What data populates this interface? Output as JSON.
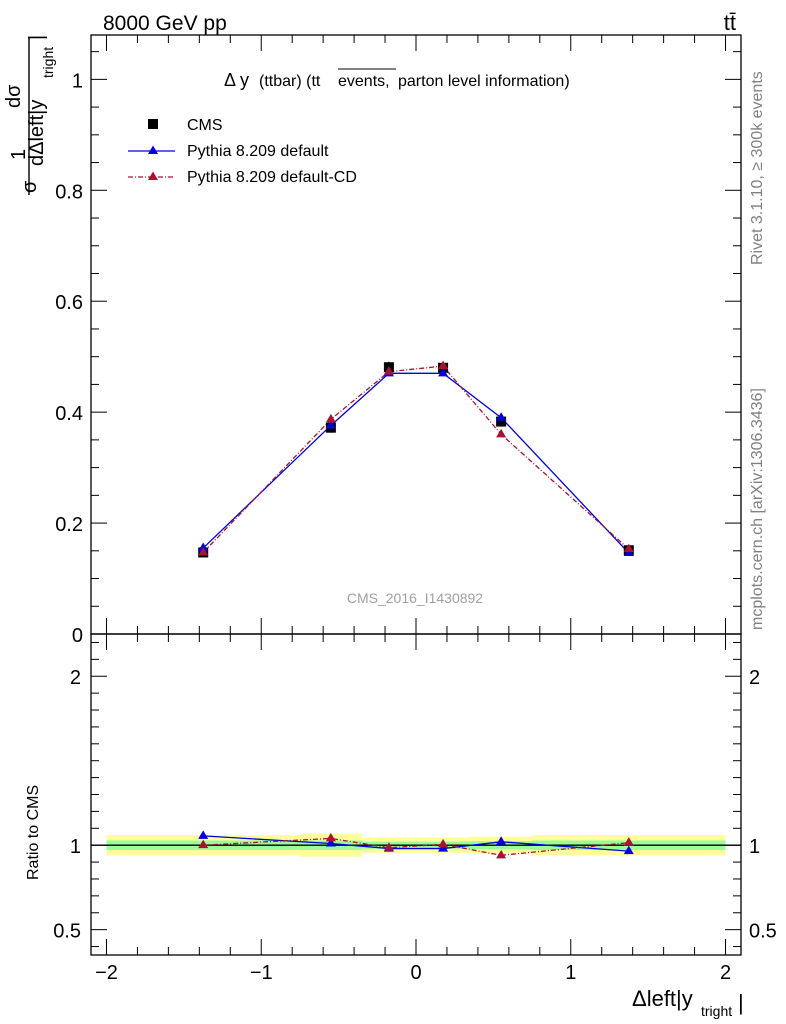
{
  "header": {
    "energy_label": "8000 GeV pp",
    "process_label": "tt̄"
  },
  "side_labels": {
    "rivet": "Rivet 3.1.10, ≥ 300k events",
    "mcplots": "mcplots.cern.ch [arXiv:1306.3436]"
  },
  "main_axis": {
    "ylabel_num": "1",
    "ylabel_frac_num": "dσ",
    "ylabel_sigma": "σ",
    "ylabel_frac_den": "dΔleft|y",
    "ylabel_sub": "tright",
    "ylabel_bar": "|"
  },
  "ratio_axis": {
    "ylabel": "Ratio to CMS"
  },
  "x_axis": {
    "label": "Δleft|y",
    "label_sub": "tright",
    "label_bar": "|"
  },
  "colors": {
    "cms": "#000000",
    "default": "#0000dd",
    "default_cd": "#aa1133",
    "band_inner": "#99ff99",
    "band_outer": "#ffff99"
  },
  "chart_data": [
    {
      "type": "line",
      "title_prefix": "Δ y",
      "title_part1": "(ttbar) (tt",
      "title_over": "events,",
      "title_part2": " parton level information)",
      "watermark": "CMS_2016_I1430892",
      "xlim": [
        -2.1,
        2.1
      ],
      "ylim": [
        0,
        1.08
      ],
      "x_ticks": [
        -2,
        -1,
        0,
        1,
        2
      ],
      "x_tick_labels": [
        "−2",
        "−1",
        "0",
        "1",
        "2"
      ],
      "y_ticks": [
        0,
        0.2,
        0.4,
        0.6,
        0.8,
        1
      ],
      "y_tick_labels": [
        "0",
        "0.2",
        "0.4",
        "0.6",
        "0.8",
        "1"
      ],
      "bin_edges": [
        -2,
        -0.75,
        -0.35,
        0,
        0.35,
        0.75,
        2
      ],
      "x": [
        -1.375,
        -0.55,
        -0.175,
        0.175,
        0.55,
        1.375
      ],
      "series": [
        {
          "name": "CMS",
          "values": [
            0.147,
            0.372,
            0.481,
            0.48,
            0.383,
            0.151
          ],
          "errors": [
            0.004,
            0.009,
            0.01,
            0.01,
            0.009,
            0.004
          ]
        },
        {
          "name": "Pythia 8.209 default",
          "values": [
            0.155,
            0.376,
            0.47,
            0.47,
            0.39,
            0.146
          ]
        },
        {
          "name": "Pythia 8.209 default-CD",
          "values": [
            0.147,
            0.387,
            0.473,
            0.483,
            0.36,
            0.153
          ]
        }
      ]
    },
    {
      "type": "line",
      "xlim": [
        -2.1,
        2.1
      ],
      "ylim": [
        0.35,
        2.25
      ],
      "y_ticks": [
        0.5,
        1,
        2
      ],
      "y_tick_labels": [
        "0.5",
        "1",
        "2"
      ],
      "bin_edges": [
        -2,
        -0.75,
        -0.35,
        0,
        0.35,
        0.75,
        2
      ],
      "band_inner": [
        0.028,
        0.028,
        0.021,
        0.021,
        0.024,
        0.028
      ],
      "band_outer": [
        0.06,
        0.068,
        0.045,
        0.045,
        0.05,
        0.06
      ],
      "x": [
        -1.375,
        -0.55,
        -0.175,
        0.175,
        0.55,
        1.375
      ],
      "series": [
        {
          "name": "Pythia 8.209 default",
          "values": [
            1.055,
            1.01,
            0.98,
            0.98,
            1.02,
            0.965
          ]
        },
        {
          "name": "Pythia 8.209 default-CD",
          "values": [
            1.0,
            1.04,
            0.985,
            1.005,
            0.94,
            1.015
          ]
        }
      ]
    }
  ]
}
